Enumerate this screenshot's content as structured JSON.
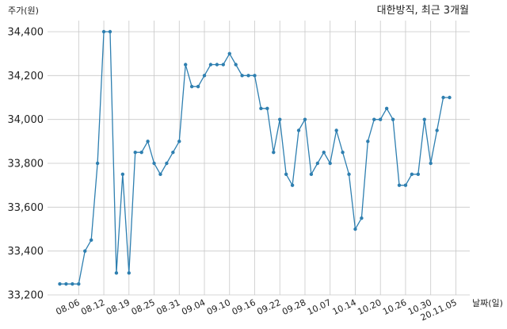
{
  "chart_data": {
    "type": "line",
    "title": "대한방직, 최근 3개월",
    "ylabel": "주가(원)",
    "xlabel": "날짜(일)",
    "ylim": [
      33200,
      34500
    ],
    "y_ticks": [
      33200,
      33400,
      33600,
      33800,
      34000,
      34200,
      34400
    ],
    "y_tick_labels": [
      "33,200",
      "33,400",
      "33,600",
      "33,800",
      "34,000",
      "34,200",
      "34,400"
    ],
    "x_tick_labels": [
      "08.06",
      "08.12",
      "08.19",
      "08.25",
      "08.31",
      "09.04",
      "09.10",
      "09.16",
      "09.22",
      "09.28",
      "10.07",
      "10.14",
      "10.20",
      "10.26",
      "10.30",
      "20.11.05"
    ],
    "x_tick_index": [
      3,
      7,
      11,
      15,
      19,
      23,
      27,
      31,
      35,
      39,
      43,
      47,
      51,
      55,
      59,
      63
    ],
    "grid": true,
    "color": "#2e7fb0",
    "values": [
      33250,
      33250,
      33250,
      33250,
      33400,
      33450,
      33800,
      34400,
      34400,
      33300,
      33750,
      33300,
      33850,
      33850,
      33900,
      33800,
      33750,
      33800,
      33850,
      33900,
      34250,
      34150,
      34150,
      34200,
      34250,
      34250,
      34250,
      34300,
      34250,
      34200,
      34200,
      34200,
      34050,
      34050,
      33850,
      34000,
      33750,
      33700,
      33950,
      34000,
      33750,
      33800,
      33850,
      33800,
      33950,
      33850,
      33750,
      33500,
      33550,
      33900,
      34000,
      34000,
      34050,
      34000,
      33700,
      33700,
      33750,
      33750,
      34000,
      33800,
      33950,
      34100,
      34100
    ]
  }
}
